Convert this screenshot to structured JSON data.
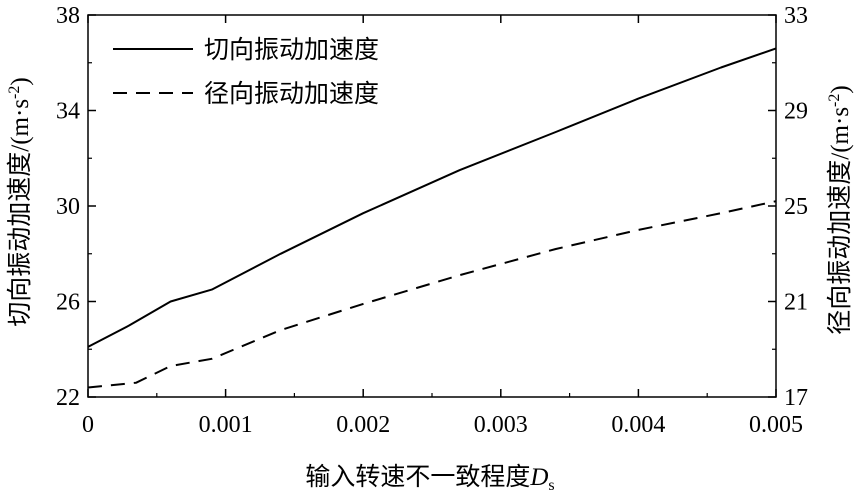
{
  "chart_data": {
    "type": "line",
    "xlabel": "输入转速不一致程度",
    "xlabel_symbol": "D",
    "xlabel_subscript": "s",
    "ylabel_left": "切向振动加速度/(m·s",
    "ylabel_right": "径向振动加速度",
    "ylabel_right_unit": "/(m·s",
    "unit_exponent": "-2",
    "unit_close": ")",
    "xlim": [
      0,
      0.005
    ],
    "ylim_left": [
      22,
      38
    ],
    "ylim_right": [
      17,
      33
    ],
    "x_ticks": [
      "0",
      "0.001",
      "0.002",
      "0.003",
      "0.004",
      "0.005"
    ],
    "y_ticks_left": [
      "22",
      "26",
      "30",
      "34",
      "38"
    ],
    "y_ticks_right": [
      "17",
      "21",
      "25",
      "29",
      "33"
    ],
    "legend_position": "top-left",
    "series": [
      {
        "name": "切向振动加速度",
        "axis": "left",
        "style": "solid",
        "x": [
          0,
          0.0003,
          0.0006,
          0.0009,
          0.0014,
          0.002,
          0.0027,
          0.0034,
          0.004,
          0.0046,
          0.005
        ],
        "y": [
          24.1,
          25.0,
          26.0,
          26.5,
          28.0,
          29.7,
          31.5,
          33.1,
          34.5,
          35.8,
          36.6
        ]
      },
      {
        "name": "径向振动加速度",
        "axis": "right",
        "style": "dashed",
        "x": [
          0,
          0.00035,
          0.0006,
          0.0009,
          0.0014,
          0.002,
          0.0027,
          0.0034,
          0.004,
          0.0046,
          0.005
        ],
        "y": [
          17.4,
          17.6,
          18.3,
          18.6,
          19.8,
          20.9,
          22.1,
          23.2,
          24.0,
          24.7,
          25.2
        ]
      }
    ]
  }
}
